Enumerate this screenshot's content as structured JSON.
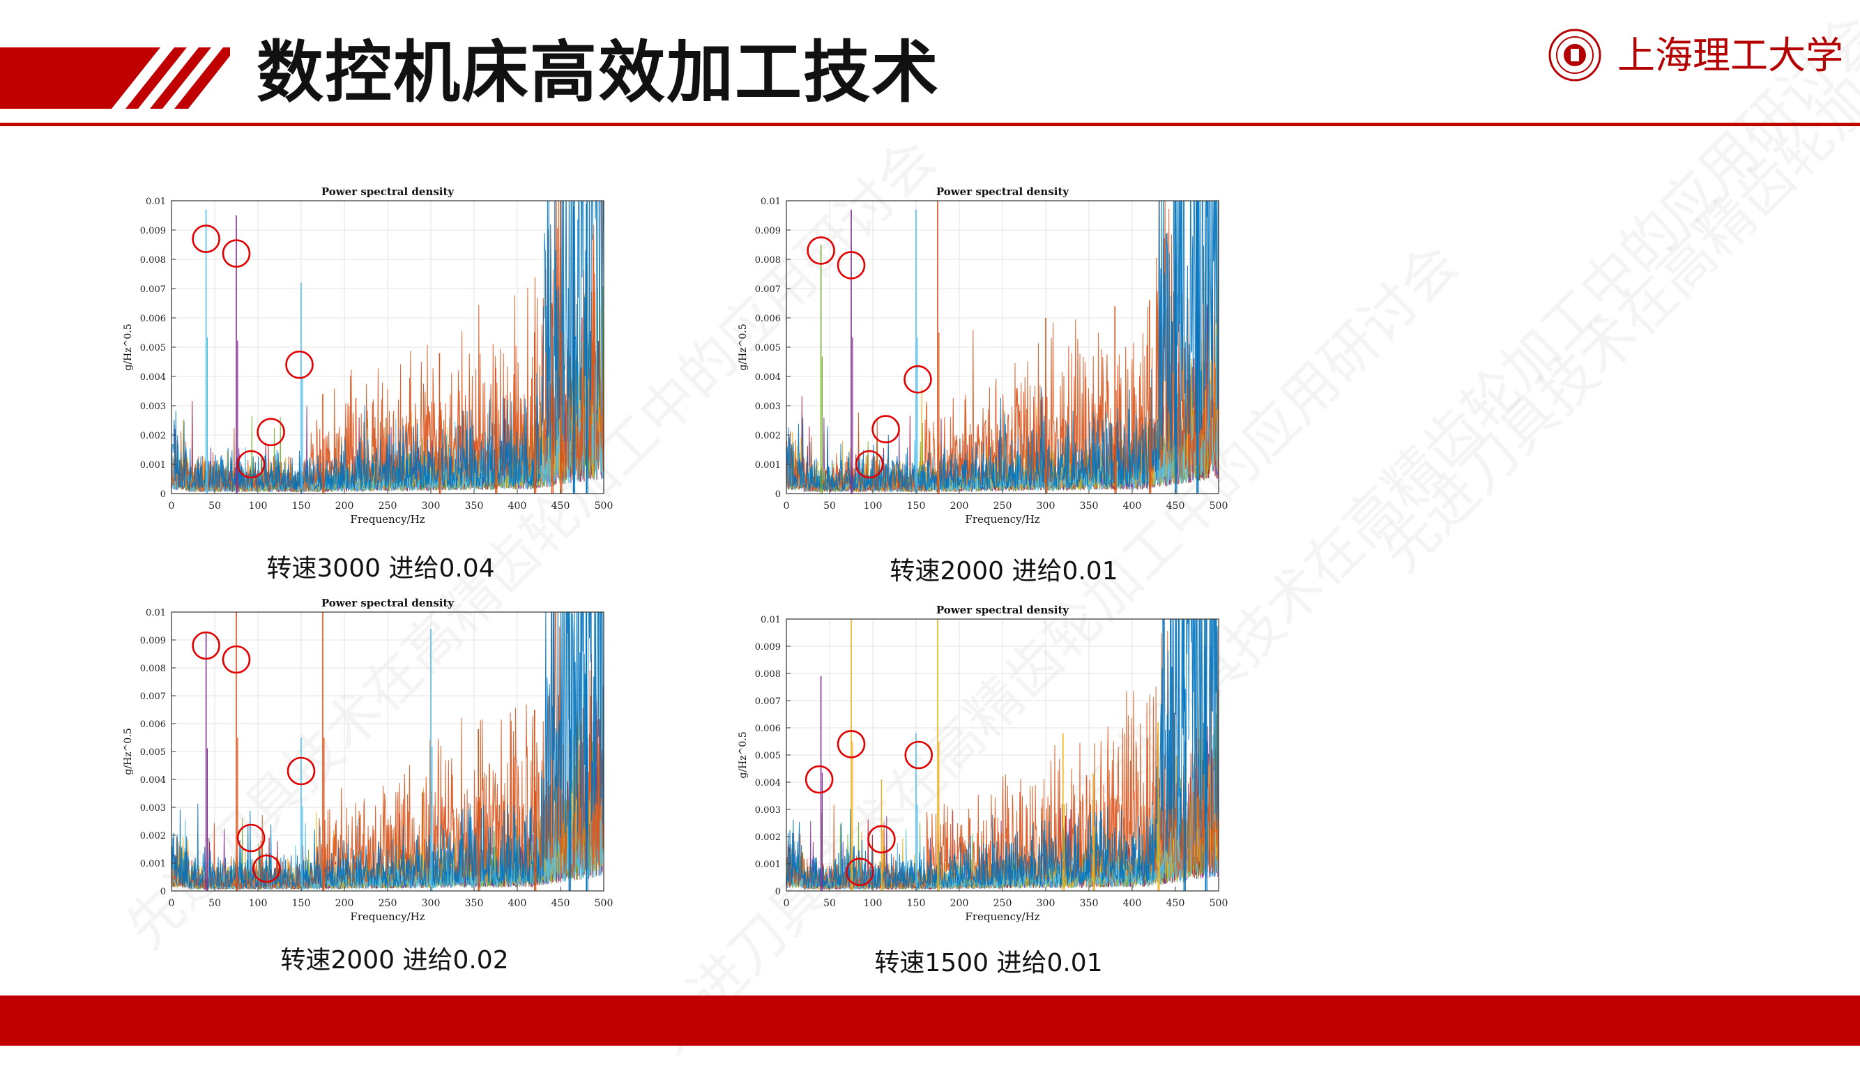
{
  "page": {
    "title": "数控机床高效加工技术",
    "logo_text": "上海理工大学",
    "watermark": "先进刀具技术在高精齿轮加工中的应用研讨会",
    "accent_color": "#c00000"
  },
  "chart_data": [
    {
      "type": "line",
      "title": "Power spectral density",
      "xlabel": "Frequency/Hz",
      "ylabel": "g/Hz^0.5",
      "xlim": [
        0,
        500
      ],
      "ylim": [
        0,
        0.01
      ],
      "xticks": [
        0,
        50,
        100,
        150,
        200,
        250,
        300,
        350,
        400,
        450,
        500
      ],
      "yticks": [
        0,
        0.001,
        0.002,
        0.003,
        0.004,
        0.005,
        0.006,
        0.007,
        0.008,
        0.009,
        0.01
      ],
      "caption": "转速3000 进给0.04",
      "palette": [
        "#0072bd",
        "#d95319",
        "#edb120",
        "#4dbeee",
        "#77ac30",
        "#7e2f8e",
        "#a2142f"
      ],
      "grid": true,
      "peaks": [
        {
          "x": 40,
          "y": 0.0097,
          "color": "#4dbeee"
        },
        {
          "x": 75,
          "y": 0.0095,
          "color": "#7e2f8e"
        },
        {
          "x": 150,
          "y": 0.0072,
          "color": "#4dbeee"
        },
        {
          "x": 175,
          "y": 0.0034,
          "color": "#d95319"
        },
        {
          "x": 310,
          "y": 0.0048,
          "color": "#d95319"
        },
        {
          "x": 375,
          "y": 0.0043,
          "color": "#d95319"
        },
        {
          "x": 420,
          "y": 0.0055,
          "color": "#d95319"
        },
        {
          "x": 440,
          "y": 0.0065,
          "color": "#d95319"
        },
        {
          "x": 450,
          "y": 0.01,
          "color": "#d95319"
        },
        {
          "x": 465,
          "y": 0.0098,
          "color": "#0072bd"
        },
        {
          "x": 480,
          "y": 0.0099,
          "color": "#0072bd"
        }
      ],
      "circles": [
        {
          "x": 40,
          "y": 0.0087
        },
        {
          "x": 75,
          "y": 0.0082
        },
        {
          "x": 148,
          "y": 0.0044
        },
        {
          "x": 115,
          "y": 0.0021
        },
        {
          "x": 92,
          "y": 0.001
        }
      ]
    },
    {
      "type": "line",
      "title": "Power spectral density",
      "xlabel": "Frequency/Hz",
      "ylabel": "g/Hz^0.5",
      "xlim": [
        0,
        500
      ],
      "ylim": [
        0,
        0.01
      ],
      "xticks": [
        0,
        50,
        100,
        150,
        200,
        250,
        300,
        350,
        400,
        450,
        500
      ],
      "yticks": [
        0,
        0.001,
        0.002,
        0.003,
        0.004,
        0.005,
        0.006,
        0.007,
        0.008,
        0.009,
        0.01
      ],
      "caption": "转速2000 进给0.01",
      "palette": [
        "#0072bd",
        "#d95319",
        "#edb120",
        "#4dbeee",
        "#77ac30",
        "#7e2f8e",
        "#a2142f"
      ],
      "grid": true,
      "peaks": [
        {
          "x": 40,
          "y": 0.0085,
          "color": "#77ac30"
        },
        {
          "x": 75,
          "y": 0.0097,
          "color": "#7e2f8e"
        },
        {
          "x": 150,
          "y": 0.0097,
          "color": "#4dbeee"
        },
        {
          "x": 175,
          "y": 0.01,
          "color": "#d95319"
        },
        {
          "x": 300,
          "y": 0.006,
          "color": "#d95319"
        },
        {
          "x": 380,
          "y": 0.0064,
          "color": "#d95319"
        },
        {
          "x": 420,
          "y": 0.0066,
          "color": "#d95319"
        },
        {
          "x": 450,
          "y": 0.01,
          "color": "#0072bd"
        },
        {
          "x": 475,
          "y": 0.01,
          "color": "#0072bd"
        }
      ],
      "circles": [
        {
          "x": 40,
          "y": 0.0083
        },
        {
          "x": 75,
          "y": 0.0078
        },
        {
          "x": 152,
          "y": 0.0039
        },
        {
          "x": 115,
          "y": 0.0022
        },
        {
          "x": 96,
          "y": 0.001
        }
      ]
    },
    {
      "type": "line",
      "title": "Power spectral density",
      "xlabel": "Frequency/Hz",
      "ylabel": "g/Hz^0.5",
      "xlim": [
        0,
        500
      ],
      "ylim": [
        0,
        0.01
      ],
      "xticks": [
        0,
        50,
        100,
        150,
        200,
        250,
        300,
        350,
        400,
        450,
        500
      ],
      "yticks": [
        0,
        0.001,
        0.002,
        0.003,
        0.004,
        0.005,
        0.006,
        0.007,
        0.008,
        0.009,
        0.01
      ],
      "caption": "转速2000 进给0.02",
      "palette": [
        "#0072bd",
        "#d95319",
        "#edb120",
        "#4dbeee",
        "#77ac30",
        "#7e2f8e",
        "#a2142f"
      ],
      "grid": true,
      "peaks": [
        {
          "x": 40,
          "y": 0.0093,
          "color": "#7e2f8e"
        },
        {
          "x": 75,
          "y": 0.01,
          "color": "#d95319"
        },
        {
          "x": 150,
          "y": 0.0055,
          "color": "#4dbeee"
        },
        {
          "x": 175,
          "y": 0.01,
          "color": "#d95319"
        },
        {
          "x": 300,
          "y": 0.0094,
          "color": "#4dbeee"
        },
        {
          "x": 355,
          "y": 0.0058,
          "color": "#d95319"
        },
        {
          "x": 420,
          "y": 0.0065,
          "color": "#d95319"
        },
        {
          "x": 460,
          "y": 0.0098,
          "color": "#0072bd"
        },
        {
          "x": 480,
          "y": 0.01,
          "color": "#0072bd"
        }
      ],
      "circles": [
        {
          "x": 40,
          "y": 0.0088
        },
        {
          "x": 75,
          "y": 0.0083
        },
        {
          "x": 150,
          "y": 0.0043
        },
        {
          "x": 92,
          "y": 0.0019
        },
        {
          "x": 110,
          "y": 0.0008
        }
      ]
    },
    {
      "type": "line",
      "title": "Power spectral density",
      "xlabel": "Frequency/Hz",
      "ylabel": "g/Hz^0.5",
      "xlim": [
        0,
        500
      ],
      "ylim": [
        0,
        0.01
      ],
      "xticks": [
        0,
        50,
        100,
        150,
        200,
        250,
        300,
        350,
        400,
        450,
        500
      ],
      "yticks": [
        0,
        0.001,
        0.002,
        0.003,
        0.004,
        0.005,
        0.006,
        0.007,
        0.008,
        0.009,
        0.01
      ],
      "caption": "转速1500 进给0.01",
      "palette": [
        "#0072bd",
        "#d95319",
        "#edb120",
        "#4dbeee",
        "#77ac30",
        "#7e2f8e",
        "#a2142f"
      ],
      "grid": true,
      "peaks": [
        {
          "x": 40,
          "y": 0.0079,
          "color": "#7e2f8e"
        },
        {
          "x": 75,
          "y": 0.01,
          "color": "#edb120"
        },
        {
          "x": 110,
          "y": 0.0041,
          "color": "#edb120"
        },
        {
          "x": 150,
          "y": 0.0058,
          "color": "#4dbeee"
        },
        {
          "x": 175,
          "y": 0.01,
          "color": "#edb120"
        },
        {
          "x": 320,
          "y": 0.0058,
          "color": "#edb120"
        },
        {
          "x": 355,
          "y": 0.0043,
          "color": "#edb120"
        },
        {
          "x": 430,
          "y": 0.0062,
          "color": "#edb120"
        },
        {
          "x": 460,
          "y": 0.01,
          "color": "#0072bd"
        },
        {
          "x": 485,
          "y": 0.01,
          "color": "#0072bd"
        }
      ],
      "circles": [
        {
          "x": 38,
          "y": 0.0041
        },
        {
          "x": 75,
          "y": 0.0054
        },
        {
          "x": 153,
          "y": 0.005
        },
        {
          "x": 110,
          "y": 0.0019
        },
        {
          "x": 85,
          "y": 0.0007
        }
      ]
    }
  ]
}
